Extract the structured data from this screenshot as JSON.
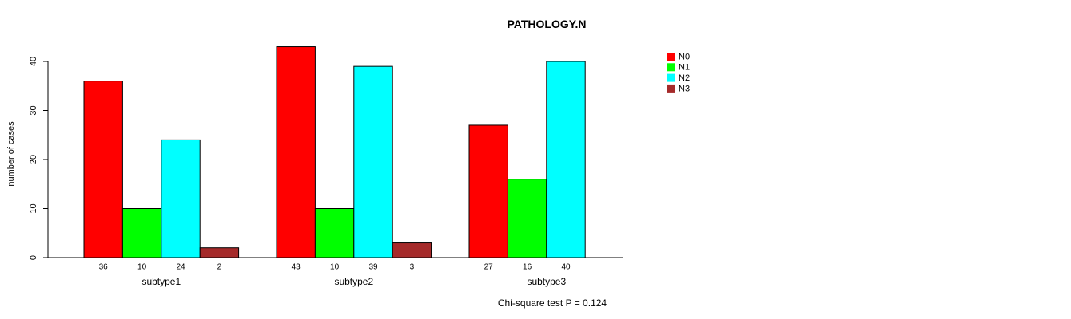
{
  "chart_data": {
    "type": "bar",
    "title": "PATHOLOGY.N",
    "ylabel": "number of cases",
    "xlabel": "",
    "ylim": [
      0,
      40
    ],
    "yticks": [
      0,
      10,
      20,
      30,
      40
    ],
    "categories": [
      "subtype1",
      "subtype2",
      "subtype3"
    ],
    "series": [
      {
        "name": "N0",
        "color": "#ff0000",
        "values": [
          36,
          43,
          27
        ]
      },
      {
        "name": "N1",
        "color": "#00ff00",
        "values": [
          10,
          10,
          16
        ]
      },
      {
        "name": "N2",
        "color": "#00ffff",
        "values": [
          24,
          39,
          40
        ]
      },
      {
        "name": "N3",
        "color": "#a52a2a",
        "values": [
          2,
          3,
          null
        ]
      }
    ],
    "value_labels": [
      [
        "36",
        "10",
        "24",
        "2"
      ],
      [
        "43",
        "10",
        "39",
        "3"
      ],
      [
        "27",
        "16",
        "40",
        ""
      ]
    ],
    "legend_position": "top-right",
    "grid": false,
    "footnote": "Chi-square test P = 0.124"
  }
}
